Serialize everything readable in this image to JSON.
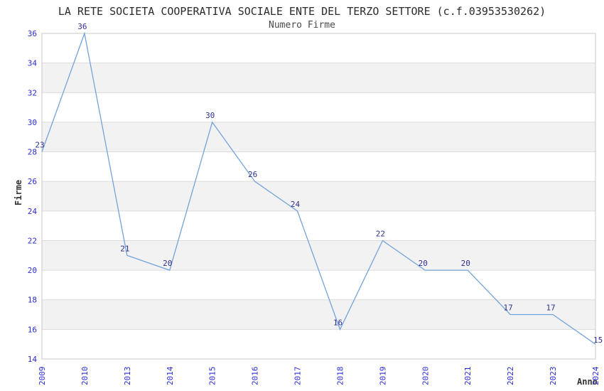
{
  "chart_data": {
    "type": "line",
    "title": "LA RETE SOCIETA COOPERATIVA SOCIALE ENTE DEL TERZO SETTORE (c.f.03953530262)",
    "subtitle": "Numero Firme",
    "xlabel": "Anno",
    "ylabel": "Firme",
    "categories": [
      "2009",
      "2010",
      "2013",
      "2014",
      "2015",
      "2016",
      "2017",
      "2018",
      "2019",
      "2020",
      "2021",
      "2022",
      "2023",
      "2024"
    ],
    "values": [
      23,
      36,
      21,
      20,
      30,
      26,
      24,
      16,
      22,
      20,
      20,
      17,
      17,
      15
    ],
    "ylim": [
      14,
      36
    ],
    "ytick_step": 2,
    "first_point_visible_entry": 28,
    "grid": true,
    "legend": false,
    "band_fill_lows": [
      16,
      20,
      24,
      28,
      32
    ],
    "colors": {
      "line": "#74A3DA",
      "point_label": "#2F2F92",
      "tick_label": "#2B2BD4",
      "axis_title": "#333333",
      "title": "#2B2B2B",
      "subtitle": "#4A4A4A",
      "band": "#F2F2F2",
      "gridline": "#DBDBDB",
      "border": "#C9C9C9",
      "background": "#FFFFFF"
    }
  }
}
